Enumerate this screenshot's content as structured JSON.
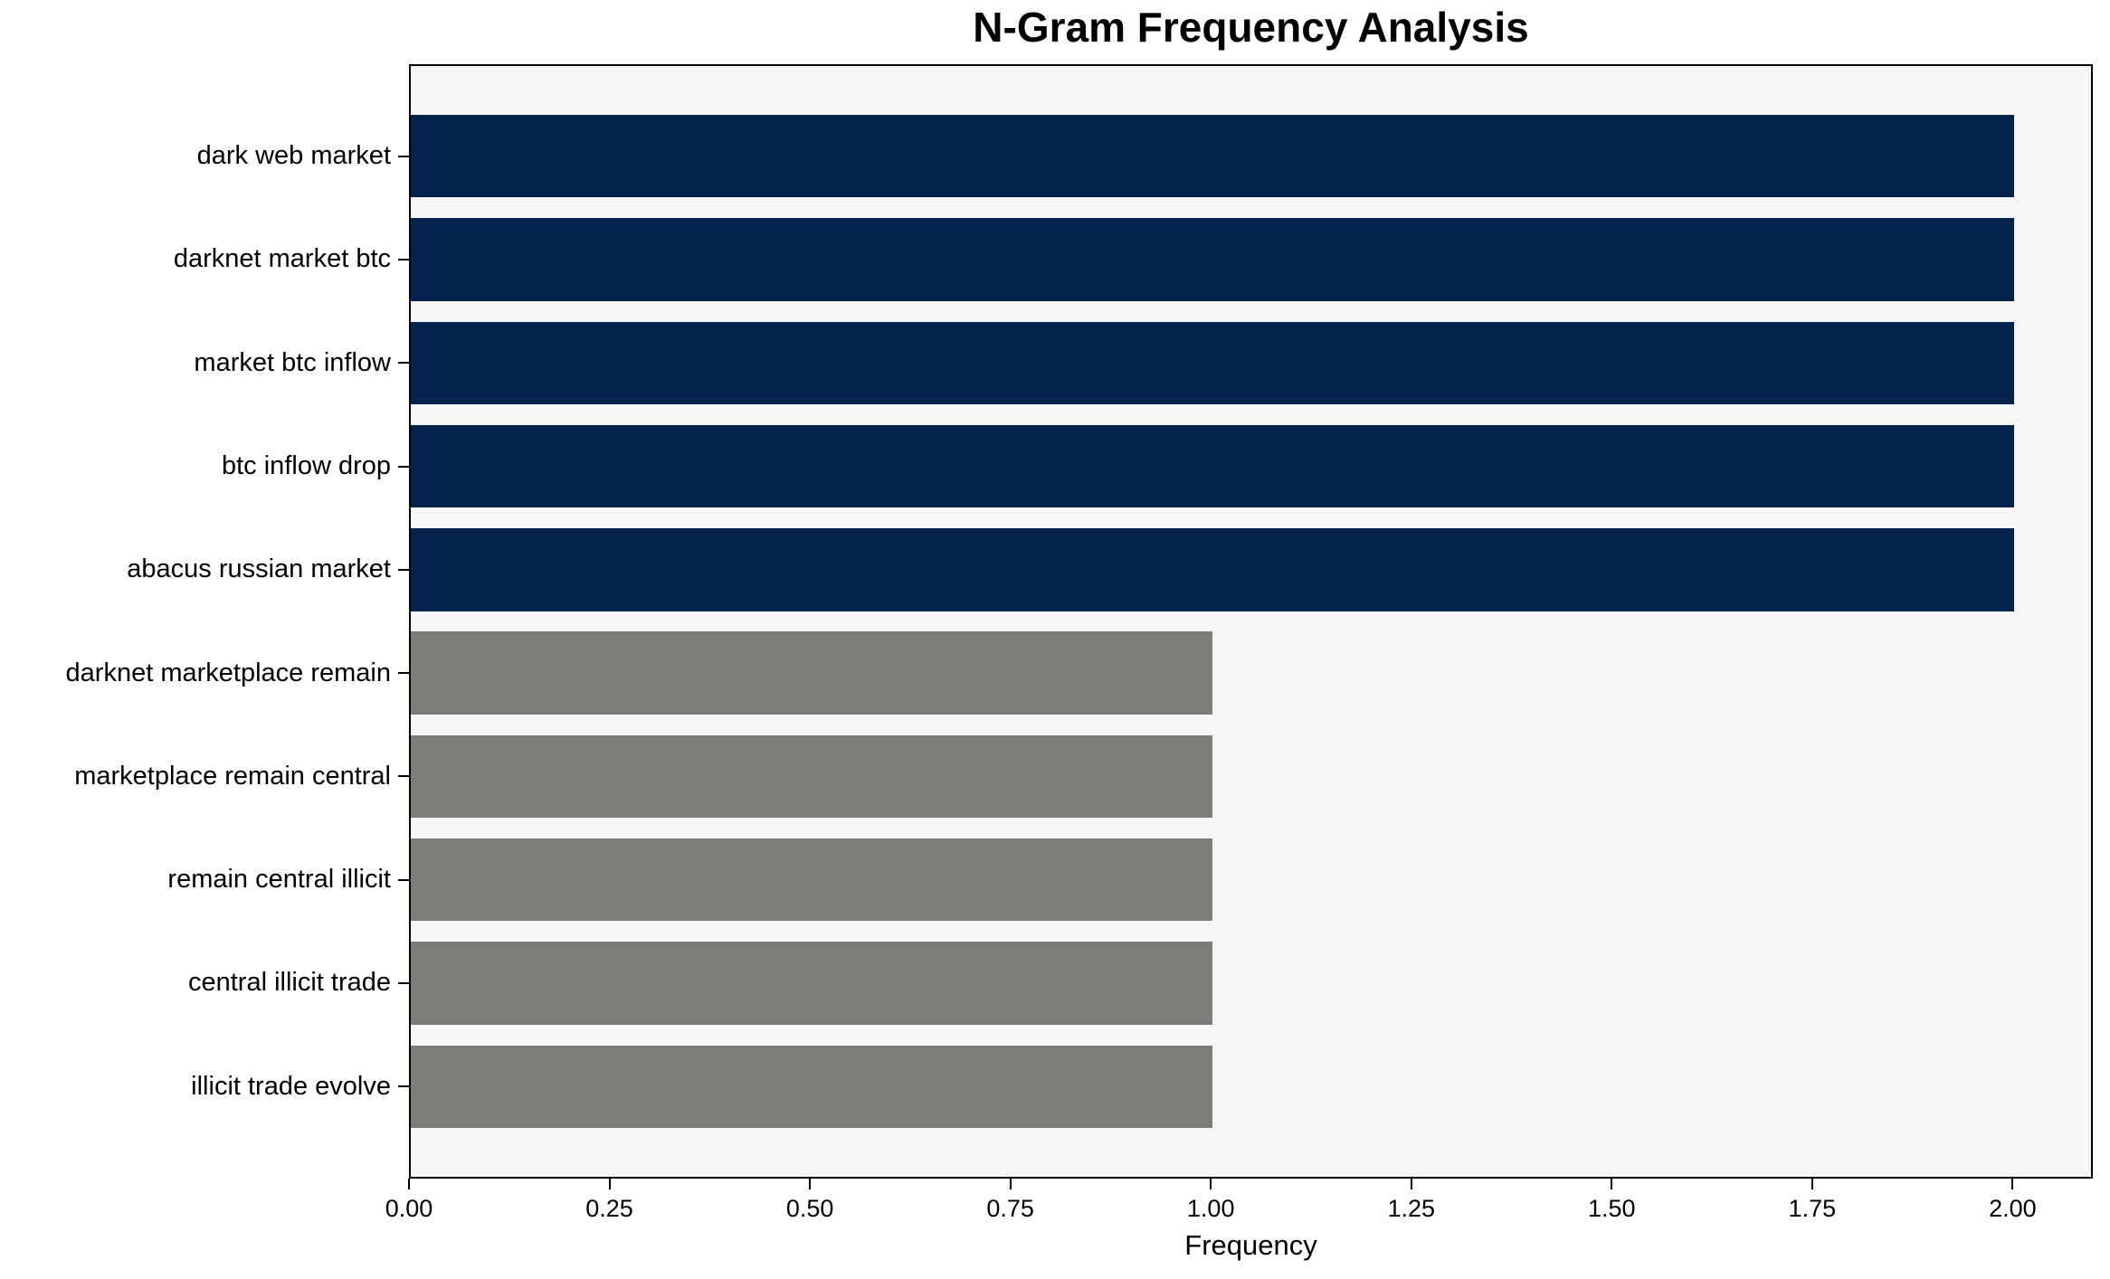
{
  "chart_data": {
    "type": "bar",
    "orientation": "horizontal",
    "title": "N-Gram Frequency Analysis",
    "xlabel": "Frequency",
    "ylabel": "",
    "categories": [
      "dark web market",
      "darknet market btc",
      "market btc inflow",
      "btc inflow drop",
      "abacus russian market",
      "darknet marketplace remain",
      "marketplace remain central",
      "remain central illicit",
      "central illicit trade",
      "illicit trade evolve"
    ],
    "values": [
      2,
      2,
      2,
      2,
      2,
      1,
      1,
      1,
      1,
      1
    ],
    "bar_colors": [
      "#03224c",
      "#03224c",
      "#03224c",
      "#03224c",
      "#03224c",
      "#7b7b78",
      "#7b7b78",
      "#7b7b78",
      "#7b7b78",
      "#7b7b78"
    ],
    "xlim": [
      0,
      2.1
    ],
    "xticks": [
      0.0,
      0.25,
      0.5,
      0.75,
      1.0,
      1.25,
      1.5,
      1.75,
      2.0
    ],
    "xtick_labels": [
      "0.00",
      "0.25",
      "0.50",
      "0.75",
      "1.00",
      "1.25",
      "1.50",
      "1.75",
      "2.00"
    ],
    "grid": false,
    "legend": null,
    "colors": {
      "bar_high": "#03224c",
      "bar_low": "#7b7b78",
      "plot_bg": "#f7f7f7",
      "figure_bg": "#ffffff",
      "spine": "#000000",
      "text": "#000000"
    }
  }
}
